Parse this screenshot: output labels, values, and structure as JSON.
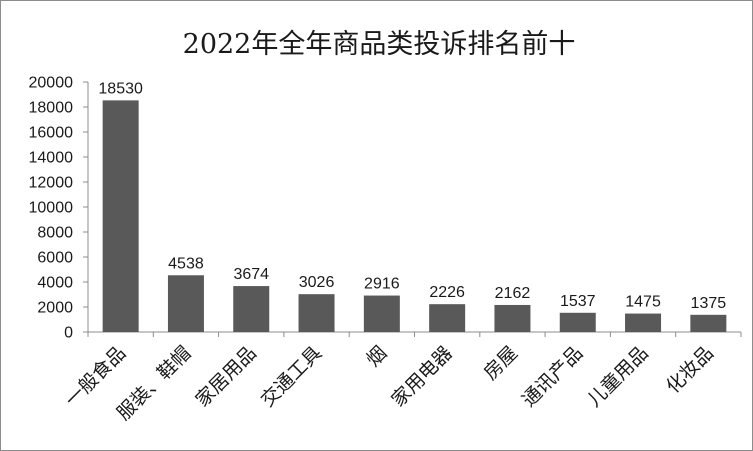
{
  "chart_data": {
    "type": "bar",
    "title": "2022年全年商品类投诉排名前十",
    "categories": [
      "一般食品",
      "服装、鞋帽",
      "家居用品",
      "交通工具",
      "烟",
      "家用电器",
      "房屋",
      "通讯产品",
      "儿童用品",
      "化妆品"
    ],
    "values": [
      18530,
      4538,
      3674,
      3026,
      2916,
      2226,
      2162,
      1537,
      1475,
      1375
    ],
    "data_labels": [
      "18530",
      "4538",
      "3674",
      "3026",
      "2916",
      "2226",
      "2162",
      "1537",
      "1475",
      "1375"
    ],
    "y_ticks": [
      "0",
      "2000",
      "4000",
      "6000",
      "8000",
      "10000",
      "12000",
      "14000",
      "16000",
      "18000",
      "20000"
    ],
    "ylim": [
      0,
      20000
    ],
    "grid": false,
    "legend": "none",
    "bar_color": "#595959"
  }
}
